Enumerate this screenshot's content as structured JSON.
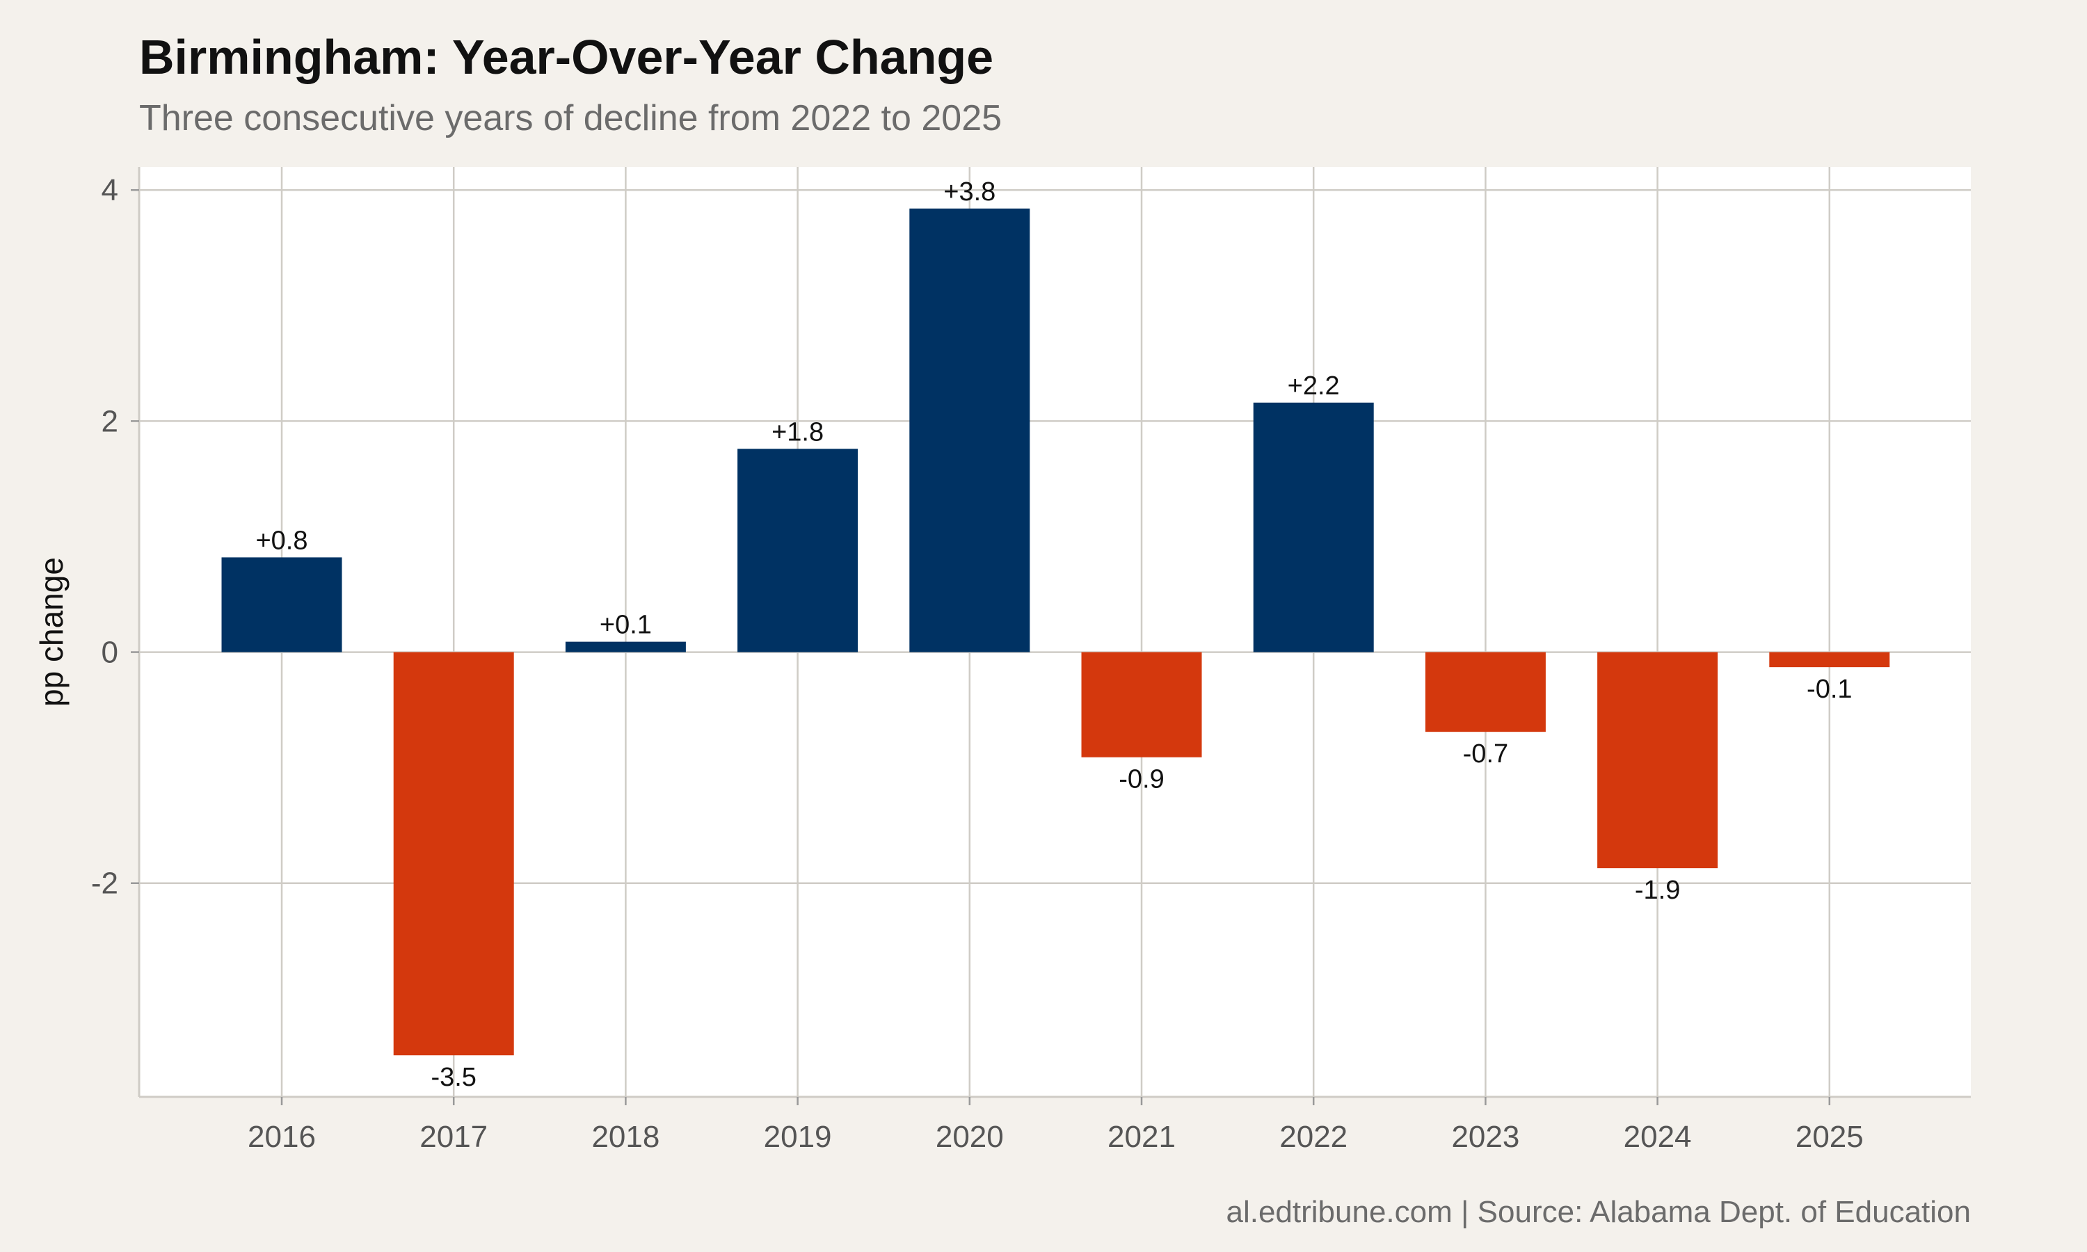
{
  "chart_data": {
    "type": "bar",
    "title": "Birmingham: Year-Over-Year Change",
    "subtitle": "Three consecutive years of decline from 2022 to 2025",
    "ylabel": "pp change",
    "xlabel": "",
    "caption": "al.edtribune.com | Source: Alabama Dept. of Education",
    "categories": [
      "2016",
      "2017",
      "2018",
      "2019",
      "2020",
      "2021",
      "2022",
      "2023",
      "2024",
      "2025"
    ],
    "values": [
      0.82,
      -3.49,
      0.09,
      1.76,
      3.84,
      -0.91,
      2.16,
      -0.69,
      -1.87,
      -0.13
    ],
    "labels": [
      "+0.8",
      "-3.5",
      "+0.1",
      "+1.8",
      "+3.8",
      "-0.9",
      "+2.2",
      "-0.7",
      "-1.9",
      "-0.1"
    ],
    "ylim": [
      -3.85,
      4.2
    ],
    "yticks": [
      4,
      2,
      0,
      -2
    ],
    "ytick_labels": [
      "4",
      "2",
      "0",
      "-2"
    ],
    "grid": true,
    "colors": {
      "positive": "#003263",
      "negative": "#d4380d",
      "background": "#f4f1ec",
      "panel": "#ffffff",
      "grid": "#cfccc6"
    }
  }
}
